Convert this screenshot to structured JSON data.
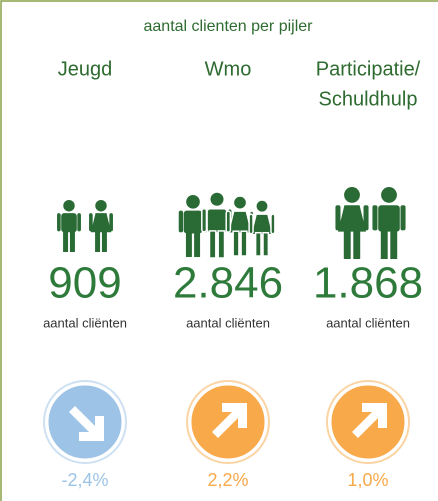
{
  "title": "aantal clienten per pijler",
  "columns": [
    {
      "name": [
        "Jeugd"
      ],
      "count": "909",
      "label": "aantal cliënten",
      "change": "-2,4%",
      "color": "#9dc3e6",
      "arrow": "down-right"
    },
    {
      "name": [
        "Wmo"
      ],
      "count": "2.846",
      "label": "aantal cliënten",
      "change": "2,2%",
      "color": "#f8a94a",
      "arrow": "up-right"
    },
    {
      "name": [
        "Participatie/",
        "Schuldhulp"
      ],
      "count": "1.868",
      "label": "aantal cliënten",
      "change": "1,0%",
      "color": "#f8a94a",
      "arrow": "up-right"
    }
  ]
}
